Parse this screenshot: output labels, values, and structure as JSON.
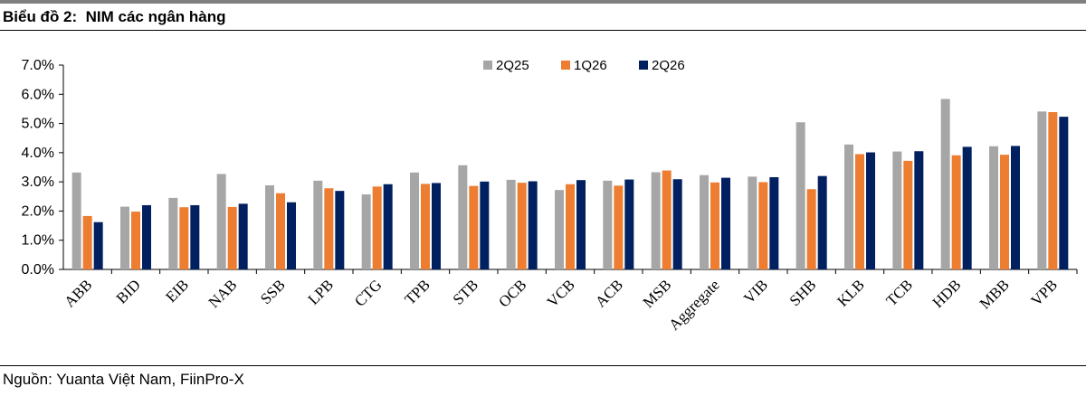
{
  "header": {
    "title": "Biểu đồ 2:  NIM các ngân hàng"
  },
  "footer": {
    "source": "Nguồn: Yuanta Việt Nam, FiinPro-X"
  },
  "chart_data": {
    "type": "bar",
    "title": "Biểu đồ 2:  NIM các ngân hàng",
    "xlabel": "",
    "ylabel": "",
    "ylim": [
      0,
      7
    ],
    "yticks": [
      "0.0%",
      "1.0%",
      "2.0%",
      "3.0%",
      "4.0%",
      "5.0%",
      "6.0%",
      "7.0%"
    ],
    "grid": false,
    "legend_position": "top-center",
    "categories": [
      "ABB",
      "BID",
      "EIB",
      "NAB",
      "SSB",
      "LPB",
      "CTG",
      "TPB",
      "STB",
      "OCB",
      "VCB",
      "ACB",
      "MSB",
      "Aggregate",
      "VIB",
      "SHB",
      "KLB",
      "TCB",
      "HDB",
      "MBB",
      "VPB"
    ],
    "series": [
      {
        "name": "2Q25",
        "color": "#A6A6A6",
        "values": [
          3.32,
          2.15,
          2.45,
          3.27,
          2.88,
          3.04,
          2.57,
          3.32,
          3.57,
          3.07,
          2.72,
          3.04,
          3.33,
          3.23,
          3.18,
          5.04,
          4.28,
          4.04,
          5.84,
          4.22,
          5.41
        ]
      },
      {
        "name": "1Q26",
        "color": "#ED7D31",
        "values": [
          1.83,
          1.98,
          2.13,
          2.14,
          2.61,
          2.78,
          2.84,
          2.93,
          2.86,
          2.97,
          2.92,
          2.87,
          3.39,
          2.98,
          2.99,
          2.75,
          3.95,
          3.72,
          3.91,
          3.93,
          5.39
        ]
      },
      {
        "name": "2Q26",
        "color": "#002060",
        "values": [
          1.62,
          2.2,
          2.2,
          2.25,
          2.3,
          2.69,
          2.92,
          2.96,
          3.01,
          3.02,
          3.06,
          3.08,
          3.09,
          3.14,
          3.16,
          3.2,
          4.01,
          4.05,
          4.2,
          4.23,
          5.23
        ]
      }
    ]
  }
}
